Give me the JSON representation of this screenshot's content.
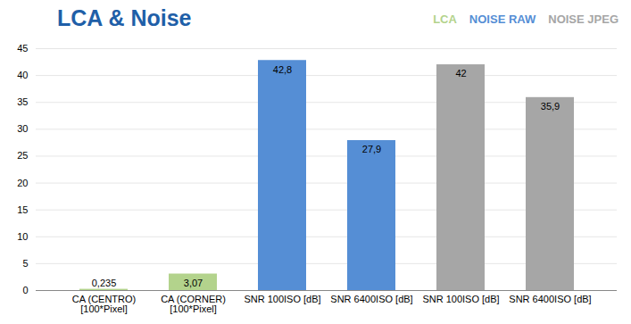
{
  "chart_data": {
    "type": "bar",
    "title": "LCA & Noise",
    "categories": [
      "CA (CENTRO)\n[100*Pixel]",
      "CA (CORNER)\n[100*Pixel]",
      "SNR 100ISO [dB]",
      "SNR 6400ISO [dB]",
      "SNR 100ISO [dB]",
      "SNR 6400ISO [dB]"
    ],
    "series": [
      {
        "name": "LCA",
        "color": "#b3d38c",
        "values": [
          0.235,
          3.07,
          null,
          null,
          null,
          null
        ],
        "value_labels": [
          "0,235",
          "3,07",
          null,
          null,
          null,
          null
        ]
      },
      {
        "name": "NOISE RAW",
        "color": "#558ed5",
        "values": [
          null,
          null,
          42.8,
          27.9,
          null,
          null
        ],
        "value_labels": [
          null,
          null,
          "42,8",
          "27,9",
          null,
          null
        ]
      },
      {
        "name": "NOISE JPEG",
        "color": "#a6a6a6",
        "values": [
          null,
          null,
          null,
          null,
          42,
          35.9
        ],
        "value_labels": [
          null,
          null,
          null,
          null,
          "42",
          "35,9"
        ]
      }
    ],
    "ylim": [
      0,
      45
    ],
    "yticks": [
      0,
      5,
      10,
      15,
      20,
      25,
      30,
      35,
      40,
      45
    ],
    "grid": true,
    "data_labels": true,
    "legend": "top-right"
  }
}
